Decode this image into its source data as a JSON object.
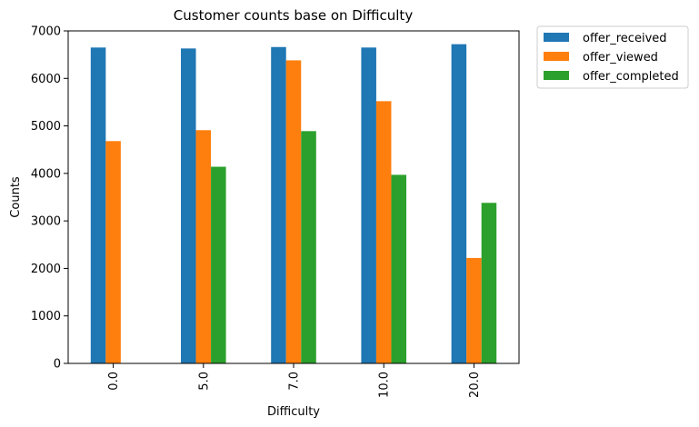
{
  "chart_data": {
    "type": "bar",
    "title": "Customer counts base on Difficulty",
    "xlabel": "Difficulty",
    "ylabel": "Counts",
    "categories": [
      "0.0",
      "5.0",
      "7.0",
      "10.0",
      "20.0"
    ],
    "ylim": [
      0,
      7000
    ],
    "yticks": [
      0,
      1000,
      2000,
      3000,
      4000,
      5000,
      6000,
      7000
    ],
    "ytick_labels": [
      "0",
      "1000",
      "2000",
      "3000",
      "4000",
      "5000",
      "6000",
      "7000"
    ],
    "series": [
      {
        "name": "offer_received",
        "color": "#1f77b4",
        "values": [
          6650,
          6630,
          6660,
          6650,
          6720
        ]
      },
      {
        "name": "offer_viewed",
        "color": "#ff7f0e",
        "values": [
          4680,
          4910,
          6380,
          5520,
          2220
        ]
      },
      {
        "name": "offer_completed",
        "color": "#2ca02c",
        "values": [
          0,
          4140,
          4890,
          3970,
          3380
        ]
      }
    ],
    "legend_position": "outside-top-right",
    "grid": false
  }
}
